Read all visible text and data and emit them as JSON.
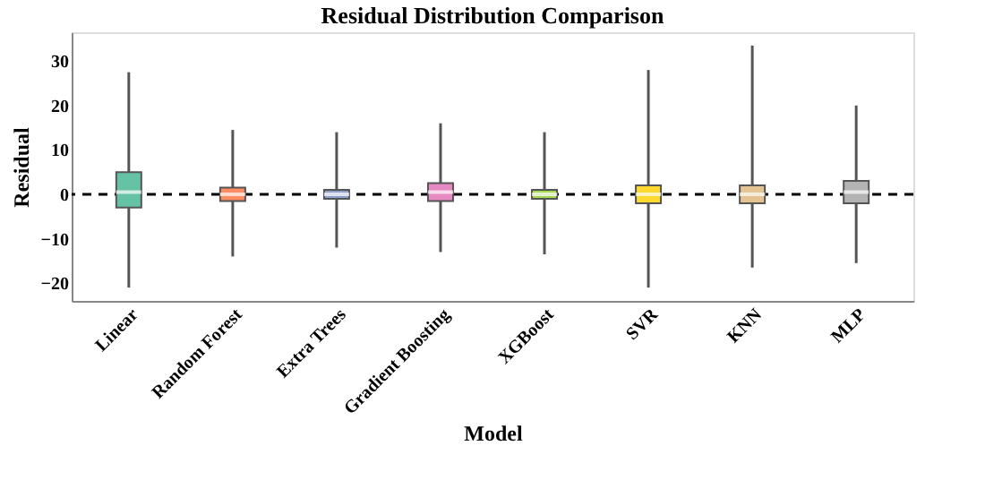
{
  "chart_data": {
    "type": "box",
    "title": "Residual Distribution Comparison",
    "xlabel": "Model",
    "ylabel": "Residual",
    "categories": [
      "Linear",
      "Random Forest",
      "Extra Trees",
      "Gradient Boosting",
      "XGBoost",
      "SVR",
      "KNN",
      "MLP"
    ],
    "colors": [
      "#66c2a5",
      "#fc8d62",
      "#8da0cb",
      "#e78ac3",
      "#a6d854",
      "#ffd92f",
      "#e5c494",
      "#b3b3b3"
    ],
    "boxes": [
      {
        "low": -21,
        "q1": -3,
        "median": 0.5,
        "q3": 5,
        "high": 27.5
      },
      {
        "low": -14,
        "q1": -1.5,
        "median": 0,
        "q3": 1.5,
        "high": 14.5
      },
      {
        "low": -12,
        "q1": -1,
        "median": 0,
        "q3": 1,
        "high": 14
      },
      {
        "low": -13,
        "q1": -1.5,
        "median": 0.5,
        "q3": 2.5,
        "high": 16
      },
      {
        "low": -13.5,
        "q1": -1,
        "median": 0,
        "q3": 1,
        "high": 14
      },
      {
        "low": -21,
        "q1": -2,
        "median": 0,
        "q3": 2,
        "high": 28
      },
      {
        "low": -16.5,
        "q1": -2,
        "median": 0,
        "q3": 2,
        "high": 33.5
      },
      {
        "low": -15.5,
        "q1": -2,
        "median": 0.5,
        "q3": 3,
        "high": 20
      }
    ],
    "ylim": [
      -24,
      36.5
    ],
    "yticks": [
      -20,
      -10,
      0,
      10,
      20,
      30
    ],
    "ref_lines": [
      {
        "axis": "y",
        "value": 0,
        "label": null,
        "color": "#000000",
        "line_style": "dashed"
      }
    ],
    "grid": false
  }
}
